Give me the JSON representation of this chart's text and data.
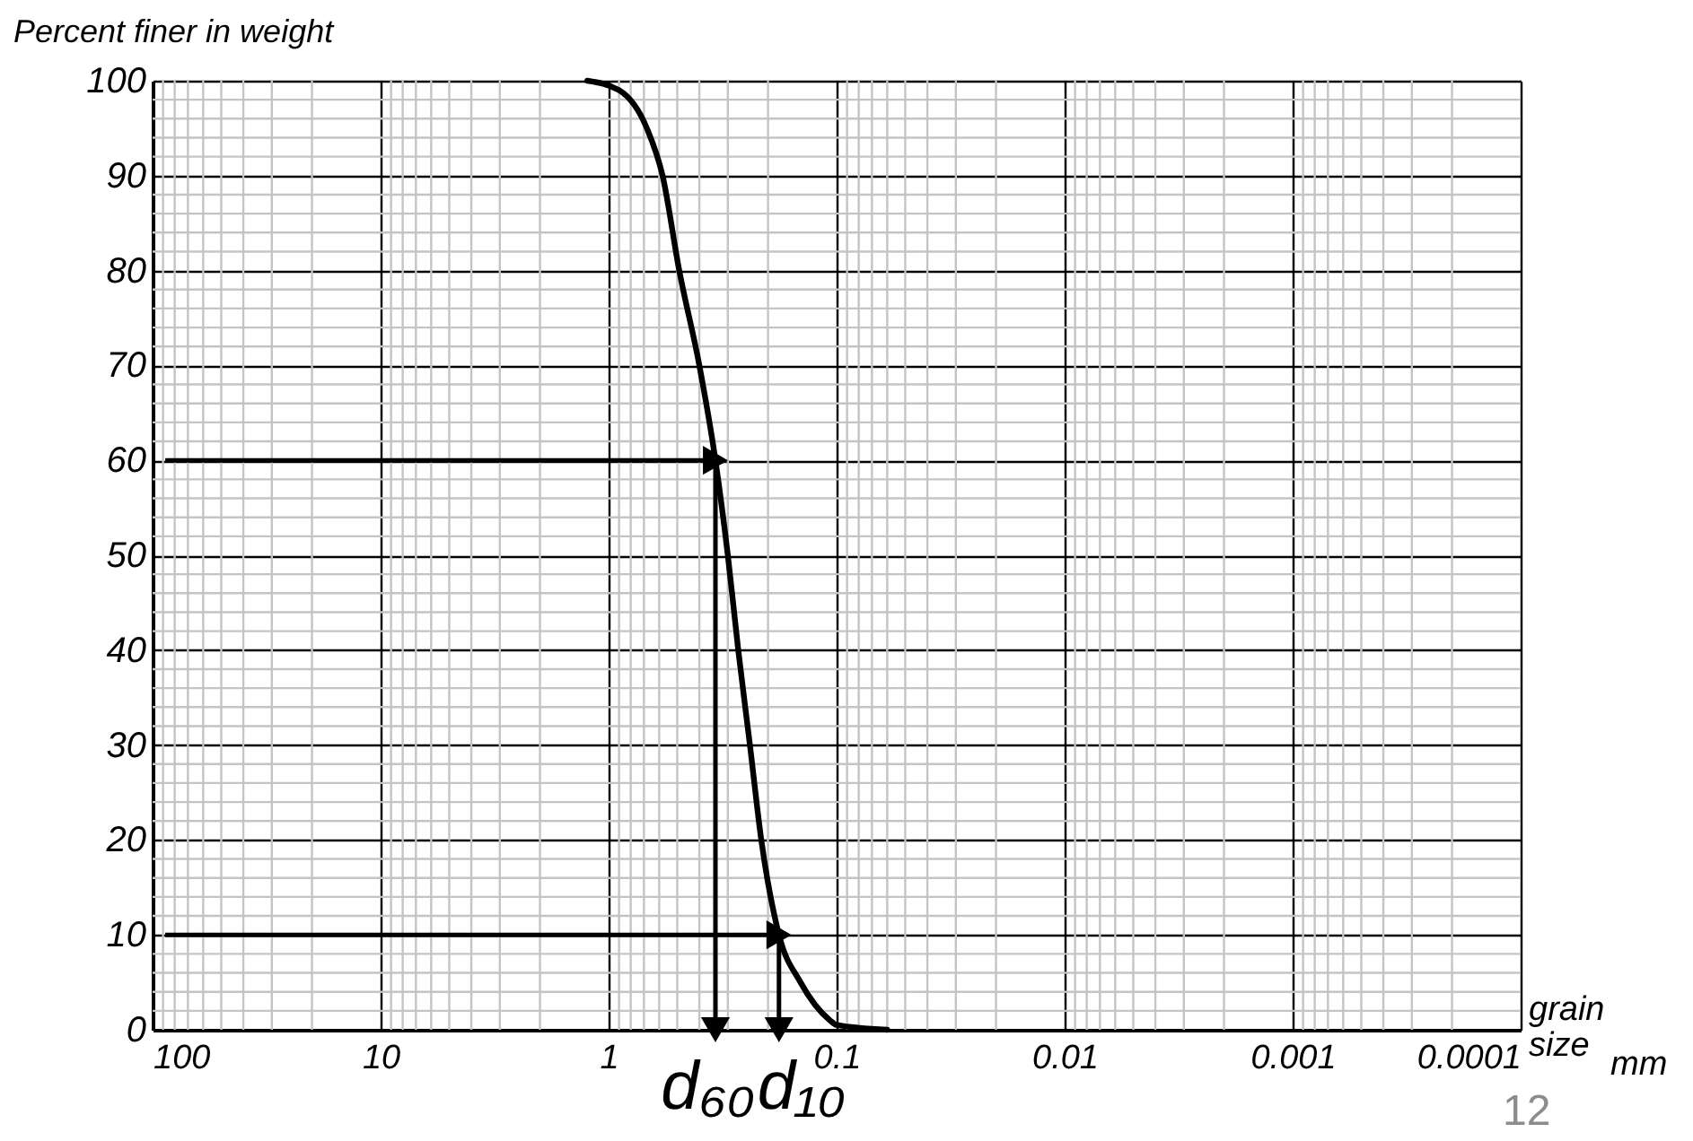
{
  "chart_data": {
    "type": "line",
    "ylabel": "Percent finer in weight",
    "xlabel": "grain size",
    "x": [
      1.24,
      0.9,
      0.68,
      0.58,
      0.49,
      0.4,
      0.34,
      0.3,
      0.27,
      0.24,
      0.214,
      0.179,
      0.144,
      0.107,
      0.1,
      0.06
    ],
    "series": [
      {
        "color": "#000000",
        "values": [
          100,
          99,
          95,
          90,
          80,
          70,
          60,
          50,
          40,
          30,
          20,
          10,
          5,
          1,
          0.5,
          0
        ]
      }
    ],
    "log": "x",
    "xlim": [
      100,
      0.0001
    ],
    "xticks": [
      100,
      10,
      1,
      0.1,
      0.01,
      0.001,
      0.0001
    ],
    "ylim": [
      0,
      100
    ],
    "yticks": [
      0,
      10,
      20,
      30,
      40,
      50,
      60,
      70,
      80,
      90,
      100
    ],
    "grid": true,
    "line_style": "solid",
    "annotations": [
      {
        "text": "d₆₀",
        "x": 0.34,
        "y": 0
      },
      {
        "text": "d₁₀",
        "x": 0.179,
        "y": 0
      },
      "mm",
      "12"
    ]
  }
}
